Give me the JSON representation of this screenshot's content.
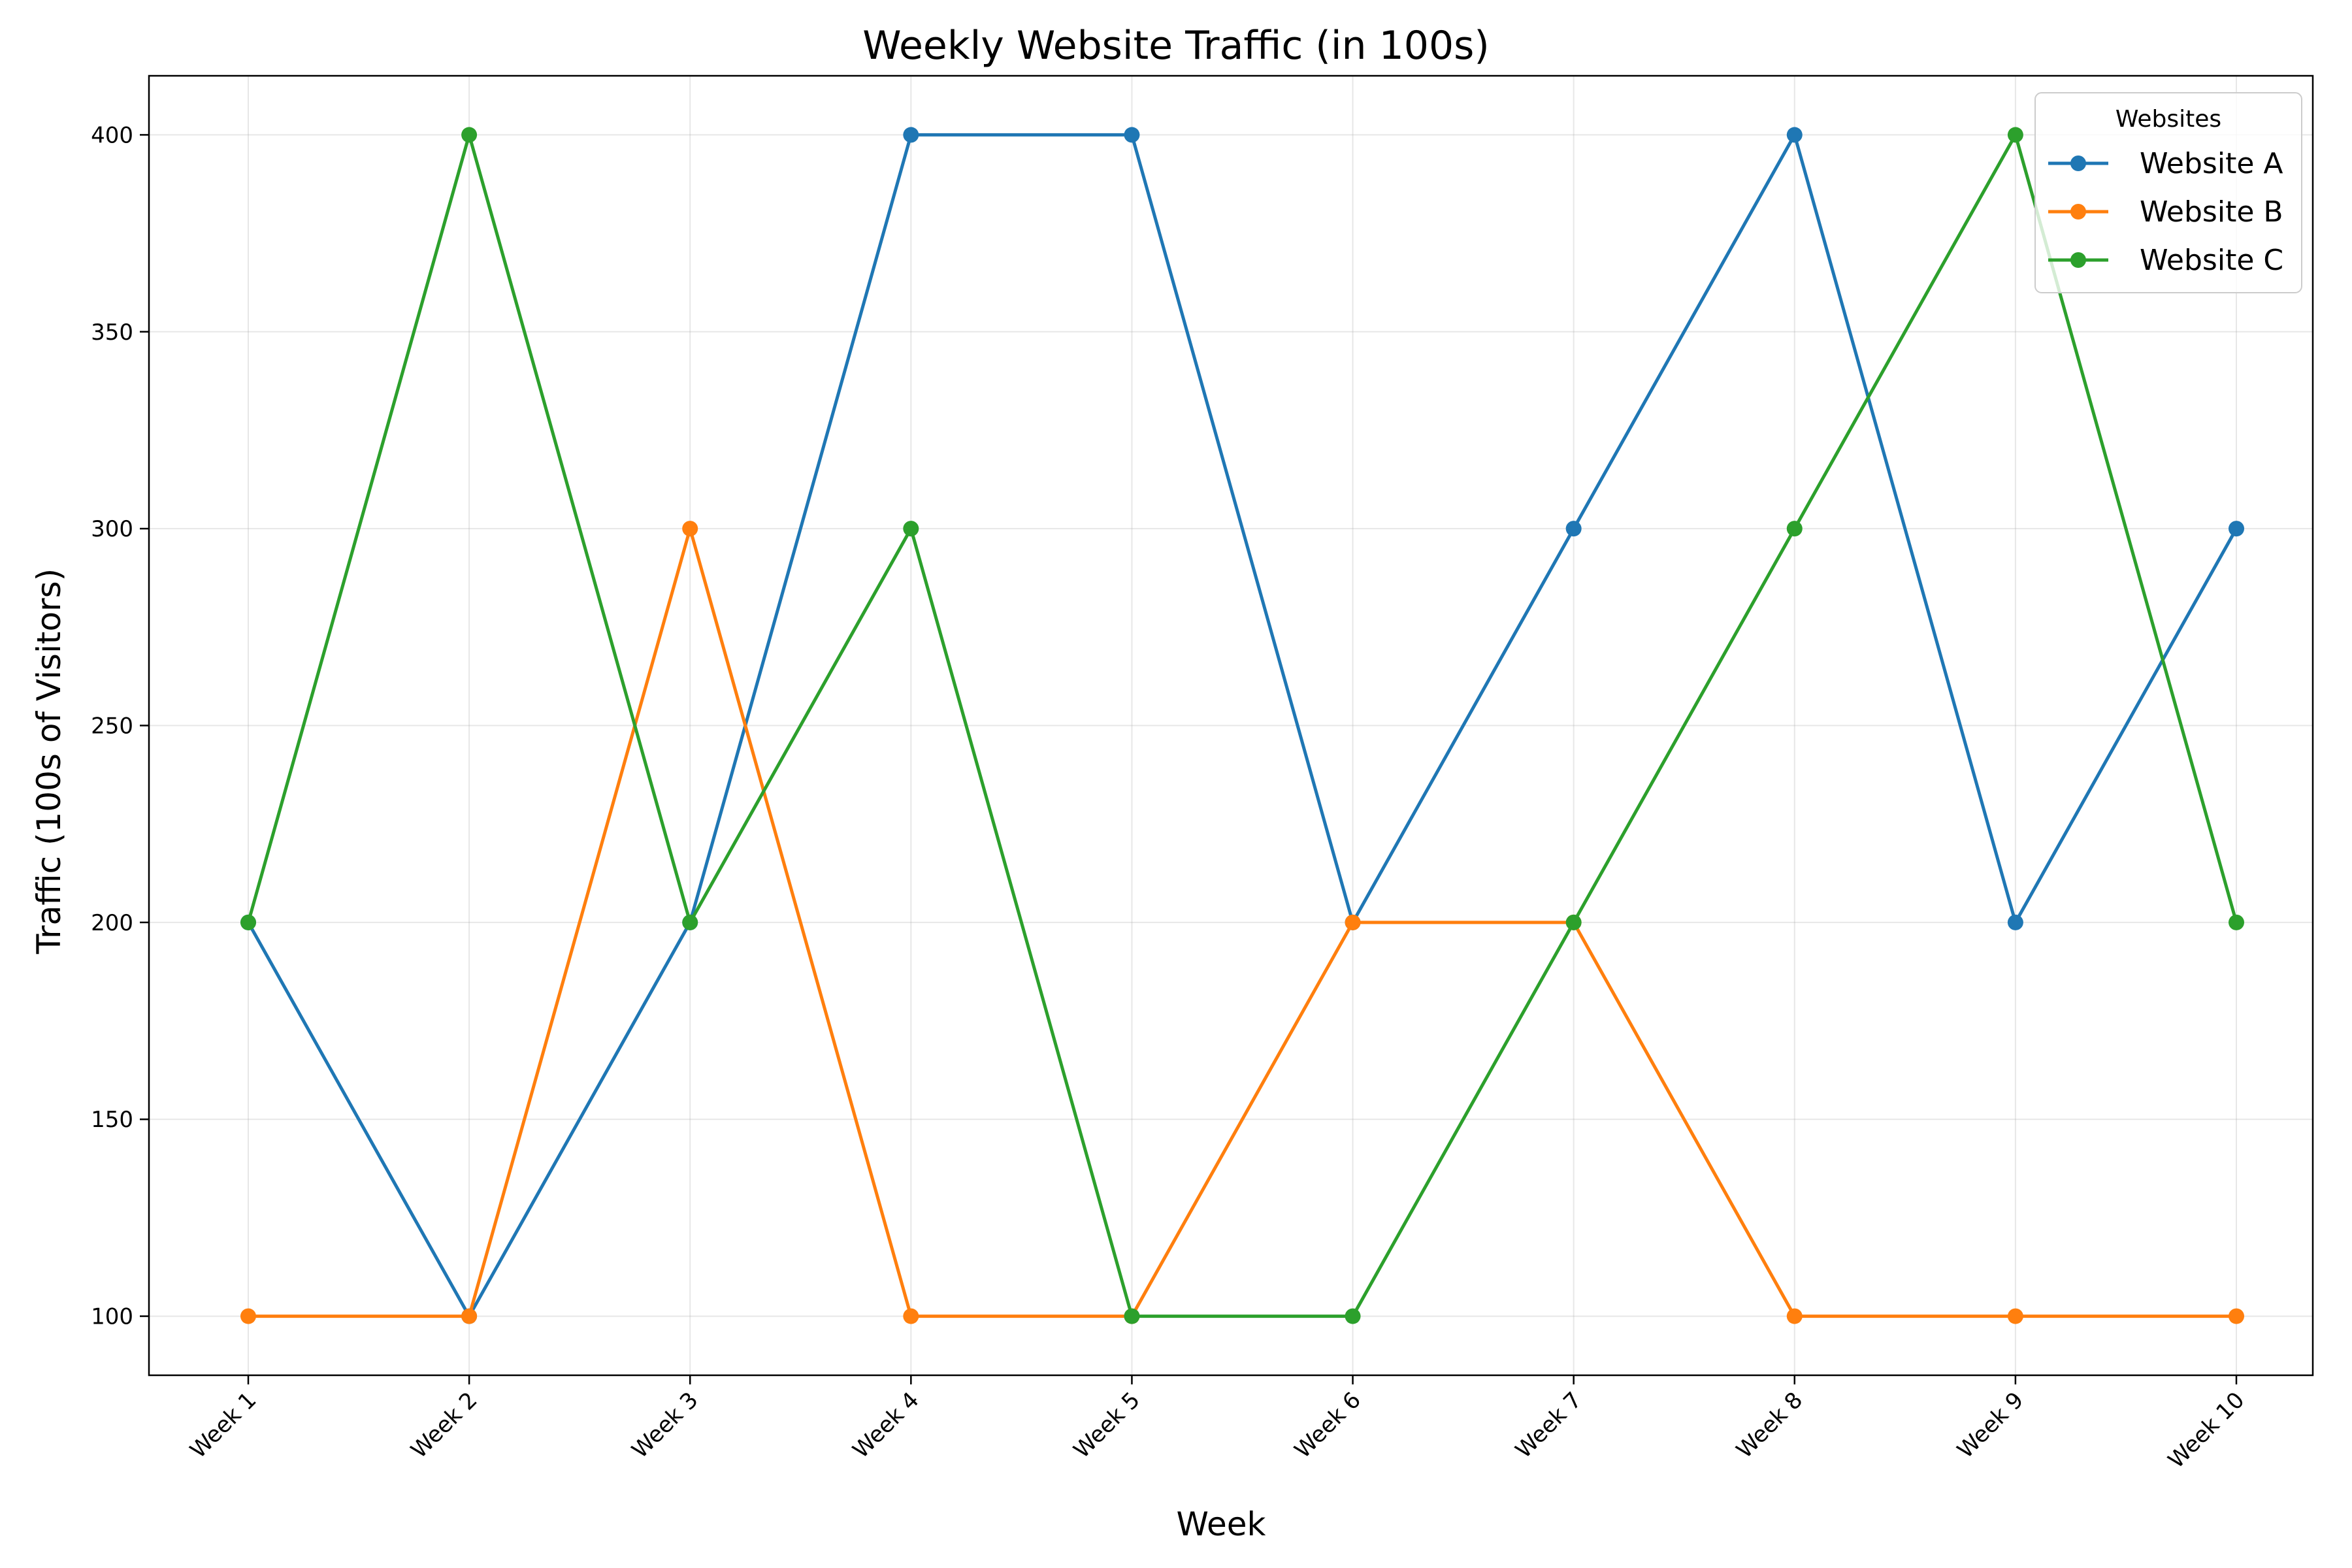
{
  "chart_data": {
    "type": "line",
    "title": "Weekly Website Traffic (in 100s)",
    "xlabel": "Week",
    "ylabel": "Traffic (100s of Visitors)",
    "categories": [
      "Week 1",
      "Week 2",
      "Week 3",
      "Week 4",
      "Week 5",
      "Week 6",
      "Week 7",
      "Week 8",
      "Week 9",
      "Week 10"
    ],
    "ylim": [
      85,
      415
    ],
    "yticks": [
      "100",
      "150",
      "200",
      "250",
      "300",
      "350",
      "400"
    ],
    "grid": true,
    "legend": {
      "title": "Websites",
      "placement": "top-right"
    },
    "series": [
      {
        "name": "Website A",
        "color": "#1f77b4",
        "values": [
          200,
          100,
          200,
          400,
          400,
          200,
          300,
          400,
          200,
          300
        ]
      },
      {
        "name": "Website B",
        "color": "#ff7f0e",
        "values": [
          100,
          100,
          300,
          100,
          100,
          200,
          200,
          100,
          100,
          100
        ]
      },
      {
        "name": "Website C",
        "color": "#2ca02c",
        "values": [
          200,
          400,
          200,
          300,
          100,
          100,
          200,
          300,
          400,
          200
        ]
      }
    ]
  }
}
